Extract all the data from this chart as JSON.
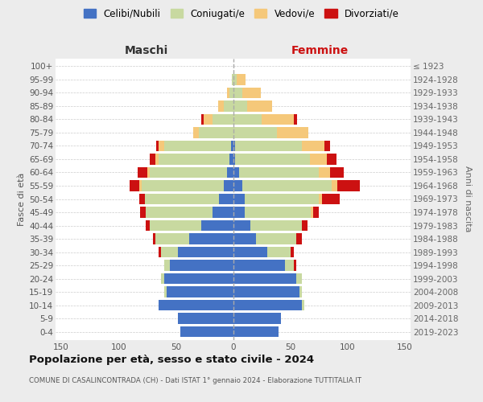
{
  "age_groups": [
    "0-4",
    "5-9",
    "10-14",
    "15-19",
    "20-24",
    "25-29",
    "30-34",
    "35-39",
    "40-44",
    "45-49",
    "50-54",
    "55-59",
    "60-64",
    "65-69",
    "70-74",
    "75-79",
    "80-84",
    "85-89",
    "90-94",
    "95-99",
    "100+"
  ],
  "birth_years": [
    "2019-2023",
    "2014-2018",
    "2009-2013",
    "2004-2008",
    "1999-2003",
    "1994-1998",
    "1989-1993",
    "1984-1988",
    "1979-1983",
    "1974-1978",
    "1969-1973",
    "1964-1968",
    "1959-1963",
    "1954-1958",
    "1949-1953",
    "1944-1948",
    "1939-1943",
    "1934-1938",
    "1929-1933",
    "1924-1928",
    "≤ 1923"
  ],
  "male_celibi": [
    46,
    48,
    65,
    58,
    60,
    55,
    48,
    38,
    28,
    18,
    12,
    8,
    5,
    3,
    2,
    0,
    0,
    0,
    0,
    0,
    0
  ],
  "male_coniugati": [
    0,
    0,
    0,
    2,
    3,
    5,
    15,
    30,
    45,
    58,
    65,
    72,
    68,
    62,
    58,
    30,
    18,
    8,
    3,
    1,
    0
  ],
  "male_vedovi": [
    0,
    0,
    0,
    0,
    0,
    0,
    0,
    0,
    0,
    0,
    0,
    2,
    2,
    3,
    5,
    5,
    8,
    5,
    2,
    0,
    0
  ],
  "male_divorziati": [
    0,
    0,
    0,
    0,
    0,
    0,
    2,
    2,
    3,
    5,
    5,
    8,
    8,
    5,
    2,
    0,
    2,
    0,
    0,
    0,
    0
  ],
  "female_nubili": [
    40,
    42,
    60,
    58,
    55,
    45,
    30,
    20,
    15,
    10,
    10,
    8,
    5,
    2,
    2,
    0,
    0,
    0,
    0,
    0,
    0
  ],
  "female_coniugate": [
    0,
    0,
    2,
    2,
    5,
    8,
    20,
    35,
    45,
    58,
    65,
    78,
    70,
    65,
    58,
    38,
    25,
    12,
    8,
    3,
    0
  ],
  "female_vedove": [
    0,
    0,
    0,
    0,
    0,
    0,
    0,
    0,
    0,
    2,
    3,
    5,
    10,
    15,
    20,
    28,
    28,
    22,
    16,
    8,
    0
  ],
  "female_divorziate": [
    0,
    0,
    0,
    0,
    0,
    2,
    3,
    5,
    5,
    5,
    15,
    20,
    12,
    8,
    5,
    0,
    3,
    0,
    0,
    0,
    0
  ],
  "colors": {
    "celibi": "#4472c4",
    "coniugati": "#c8d9a0",
    "vedovi": "#f5c87a",
    "divorziati": "#cc1111"
  },
  "legend_labels": [
    "Celibi/Nubili",
    "Coniugati/e",
    "Vedovi/e",
    "Divorziati/e"
  ],
  "title": "Popolazione per età, sesso e stato civile - 2024",
  "subtitle": "COMUNE DI CASALINCONTRADA (CH) - Dati ISTAT 1° gennaio 2024 - Elaborazione TUTTITALIA.IT",
  "maschi_label": "Maschi",
  "femmine_label": "Femmine",
  "fasce_label": "Fasce di età",
  "anni_label": "Anni di nascita",
  "xlim": 155,
  "bg_color": "#ececec",
  "plot_bg": "#ffffff"
}
